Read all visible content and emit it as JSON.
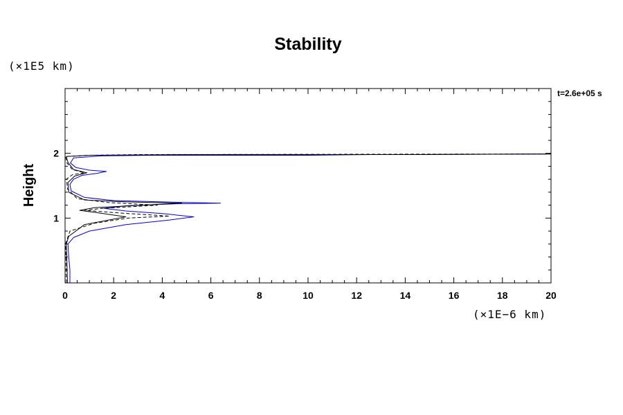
{
  "chart_data": {
    "type": "line",
    "title": "Stability",
    "xlabel": "",
    "ylabel": "Height",
    "x_unit_label": "(×1E−6 km)",
    "y_unit_label": "(×1E5 km)",
    "annotation": "t=2.6e+05 s",
    "xlim": [
      0,
      20
    ],
    "ylim": [
      0,
      3
    ],
    "x_ticks": [
      "0",
      "2",
      "4",
      "6",
      "8",
      "10",
      "12",
      "14",
      "16",
      "18",
      "20"
    ],
    "y_ticks": [
      "1",
      "2"
    ],
    "grid": false,
    "colors": {
      "blue": "#0000cc",
      "black": "#000000"
    },
    "series": [
      {
        "style": "solid",
        "color": "#0000cc",
        "points": [
          [
            0.2,
            0
          ],
          [
            0.2,
            0.2
          ],
          [
            0.15,
            0.4
          ],
          [
            0.12,
            0.6
          ],
          [
            0.35,
            0.7
          ],
          [
            1.0,
            0.8
          ],
          [
            2.5,
            0.9
          ],
          [
            4.3,
            0.97
          ],
          [
            5.3,
            1.02
          ],
          [
            4.0,
            1.07
          ],
          [
            2.5,
            1.11
          ],
          [
            1.6,
            1.15
          ],
          [
            2.5,
            1.19
          ],
          [
            4.5,
            1.22
          ],
          [
            6.4,
            1.23
          ],
          [
            4.0,
            1.25
          ],
          [
            2.0,
            1.27
          ],
          [
            0.8,
            1.32
          ],
          [
            0.25,
            1.42
          ],
          [
            0.2,
            1.52
          ],
          [
            0.35,
            1.6
          ],
          [
            0.7,
            1.66
          ],
          [
            1.3,
            1.69
          ],
          [
            1.7,
            1.72
          ],
          [
            1.0,
            1.74
          ],
          [
            0.45,
            1.78
          ],
          [
            0.22,
            1.85
          ],
          [
            0.35,
            1.93
          ],
          [
            1.5,
            1.96
          ],
          [
            3.5,
            1.97
          ],
          [
            10,
            1.97
          ],
          [
            12.6,
            1.98
          ],
          [
            14,
            1.98
          ],
          [
            20,
            1.99
          ]
        ]
      },
      {
        "style": "solid",
        "color": "#000000",
        "points": [
          [
            0.1,
            0
          ],
          [
            0.08,
            0.3
          ],
          [
            0.05,
            0.6
          ],
          [
            0.15,
            0.72
          ],
          [
            0.8,
            0.9
          ],
          [
            2.5,
            1.02
          ],
          [
            1.2,
            1.09
          ],
          [
            0.6,
            1.12
          ],
          [
            1.2,
            1.16
          ],
          [
            3.2,
            1.2
          ],
          [
            4.8,
            1.23
          ],
          [
            2.5,
            1.25
          ],
          [
            0.8,
            1.28
          ],
          [
            0.15,
            1.4
          ],
          [
            0.12,
            1.55
          ],
          [
            0.4,
            1.65
          ],
          [
            0.9,
            1.7
          ],
          [
            0.35,
            1.75
          ],
          [
            0.12,
            1.86
          ],
          [
            0.05,
            1.95
          ],
          [
            1.0,
            1.97
          ],
          [
            5,
            1.98
          ],
          [
            10,
            1.98
          ],
          [
            15,
            1.98
          ],
          [
            20,
            1.99
          ]
        ]
      },
      {
        "style": "dashed",
        "color": "#000000",
        "points": [
          [
            0.05,
            0
          ],
          [
            0.04,
            0.3
          ],
          [
            0.02,
            0.6
          ],
          [
            0.2,
            0.8
          ],
          [
            1.2,
            0.92
          ],
          [
            2.6,
            1.0
          ],
          [
            4.3,
            1.03
          ],
          [
            2.2,
            1.08
          ],
          [
            0.8,
            1.12
          ],
          [
            1.5,
            1.15
          ],
          [
            2.9,
            1.18
          ],
          [
            3.8,
            1.2
          ],
          [
            1.8,
            1.24
          ],
          [
            0.5,
            1.3
          ],
          [
            0.1,
            1.45
          ],
          [
            0.06,
            1.6
          ],
          [
            0.3,
            1.67
          ],
          [
            0.8,
            1.7
          ],
          [
            0.3,
            1.75
          ],
          [
            0.08,
            1.85
          ],
          [
            0.02,
            1.95
          ],
          [
            1.0,
            1.97
          ],
          [
            3,
            1.98
          ],
          [
            20,
            1.99
          ]
        ]
      }
    ]
  }
}
